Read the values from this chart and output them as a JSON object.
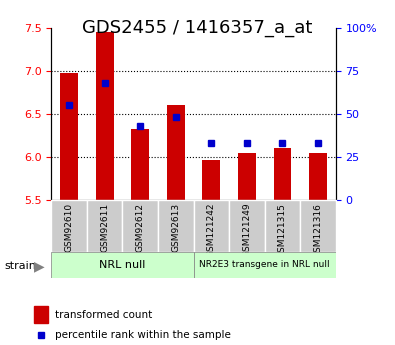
{
  "title": "GDS2455 / 1416357_a_at",
  "samples": [
    "GSM92610",
    "GSM92611",
    "GSM92612",
    "GSM92613",
    "GSM121242",
    "GSM121249",
    "GSM121315",
    "GSM121316"
  ],
  "transformed_counts": [
    6.97,
    7.45,
    6.33,
    6.6,
    5.97,
    6.05,
    6.1,
    6.05
  ],
  "percentile_ranks": [
    55,
    68,
    43,
    48,
    33,
    33,
    33,
    33
  ],
  "ylim_left": [
    5.5,
    7.5
  ],
  "ylim_right": [
    0,
    100
  ],
  "yticks_left": [
    5.5,
    6.0,
    6.5,
    7.0,
    7.5
  ],
  "yticks_right": [
    0,
    25,
    50,
    75,
    100
  ],
  "bar_color": "#cc0000",
  "dot_color": "#0000cc",
  "bar_bottom": 5.5,
  "group1_label": "NRL null",
  "group2_label": "NR2E3 transgene in NRL null",
  "group1_indices": [
    0,
    1,
    2,
    3
  ],
  "group2_indices": [
    4,
    5,
    6,
    7
  ],
  "group_bg_color": "#ccffcc",
  "sample_bg_color": "#cccccc",
  "legend_bar_label": "transformed count",
  "legend_dot_label": "percentile rank within the sample",
  "strain_label": "strain",
  "title_fontsize": 13,
  "tick_fontsize": 8,
  "label_fontsize": 8,
  "gridlines": [
    6.0,
    6.5,
    7.0
  ],
  "right_tick_labels": [
    "0",
    "25",
    "50",
    "75",
    "100%"
  ]
}
